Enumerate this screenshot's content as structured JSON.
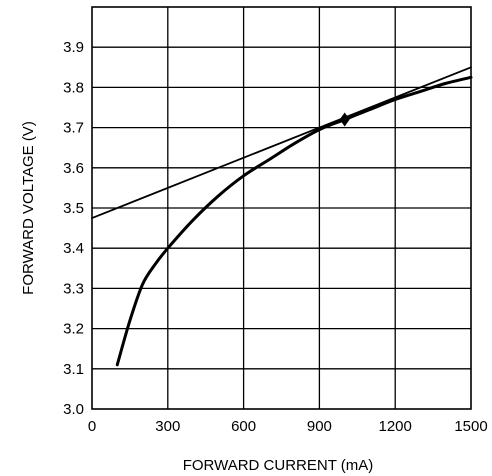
{
  "chart_data": {
    "type": "line",
    "title": "",
    "xlabel": "FORWARD CURRENT (mA)",
    "ylabel": "FORWARD VOLTAGE (V)",
    "xlim": [
      0,
      1500
    ],
    "ylim": [
      3.0,
      4.0
    ],
    "x_ticks": [
      "0",
      "300",
      "600",
      "900",
      "1200",
      "1500"
    ],
    "x_tick_values": [
      0,
      300,
      600,
      900,
      1200,
      1500
    ],
    "y_ticks": [
      "3.0",
      "3.1",
      "3.2",
      "3.3",
      "3.4",
      "3.5",
      "3.6",
      "3.7",
      "3.8",
      "3.9"
    ],
    "y_tick_values": [
      3.0,
      3.1,
      3.2,
      3.3,
      3.4,
      3.5,
      3.6,
      3.7,
      3.8,
      3.9
    ],
    "grid": true,
    "series": [
      {
        "kind": "curve",
        "x": [
          100,
          150,
          200,
          250,
          300,
          400,
          500,
          600,
          700,
          800,
          900,
          1000,
          1100,
          1200,
          1300,
          1400,
          1500
        ],
        "y": [
          3.11,
          3.22,
          3.31,
          3.36,
          3.4,
          3.47,
          3.53,
          3.58,
          3.62,
          3.66,
          3.695,
          3.72,
          3.745,
          3.77,
          3.79,
          3.81,
          3.825
        ]
      },
      {
        "kind": "tangent-line",
        "x": [
          0,
          1500
        ],
        "y": [
          3.475,
          3.85
        ]
      }
    ],
    "markers": [
      {
        "x": 1000,
        "y": 3.72,
        "shape": "diamond"
      }
    ],
    "colors": {
      "line": "#000000",
      "grid": "#000000",
      "background": "#ffffff"
    }
  }
}
